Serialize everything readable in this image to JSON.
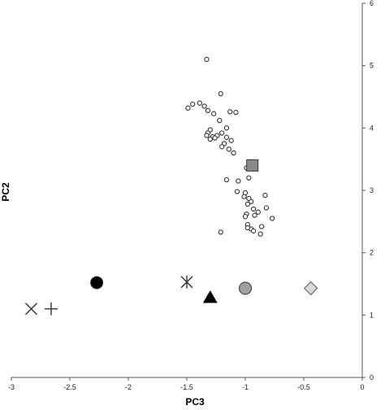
{
  "chart_data": {
    "type": "scatter",
    "title": "",
    "xlabel": "PC3",
    "ylabel": "PC2",
    "xlim": [
      -3,
      0
    ],
    "ylim": [
      0,
      6
    ],
    "x_ticks": [
      -3,
      -2.5,
      -2,
      -1.5,
      -1,
      -0.5,
      0
    ],
    "x_tick_labels": [
      "-3",
      "-2.5",
      "-2",
      "-1.5",
      "-1",
      "-0.5",
      "0"
    ],
    "y_ticks": [
      0,
      1,
      2,
      3,
      4,
      5,
      6
    ],
    "y_tick_labels": [
      "0",
      "1",
      "2",
      "3",
      "4",
      "5",
      "6"
    ],
    "grid": false,
    "y_axis_position": "right",
    "series": [
      {
        "marker": "small-open-circle",
        "color": "#ffffff",
        "edge": "#333333",
        "points": [
          [
            -1.33,
            5.1
          ],
          [
            -1.39,
            4.4
          ],
          [
            -1.45,
            4.38
          ],
          [
            -1.35,
            4.35
          ],
          [
            -1.49,
            4.32
          ],
          [
            -1.21,
            4.55
          ],
          [
            -1.13,
            4.26
          ],
          [
            -1.08,
            4.25
          ],
          [
            -1.32,
            4.28
          ],
          [
            -1.27,
            4.23
          ],
          [
            -1.22,
            4.12
          ],
          [
            -1.16,
            4.0
          ],
          [
            -1.3,
            3.97
          ],
          [
            -1.32,
            3.92
          ],
          [
            -1.28,
            3.86
          ],
          [
            -1.24,
            3.88
          ],
          [
            -1.2,
            3.92
          ],
          [
            -1.16,
            3.85
          ],
          [
            -1.12,
            3.8
          ],
          [
            -1.18,
            3.75
          ],
          [
            -1.26,
            3.84
          ],
          [
            -1.33,
            3.88
          ],
          [
            -1.3,
            3.82
          ],
          [
            -1.14,
            3.66
          ],
          [
            -1.2,
            3.7
          ],
          [
            -1.1,
            3.6
          ],
          [
            -0.97,
            3.4
          ],
          [
            -0.99,
            3.36
          ],
          [
            -1.16,
            3.17
          ],
          [
            -1.06,
            3.15
          ],
          [
            -0.97,
            3.2
          ],
          [
            -1.07,
            2.98
          ],
          [
            -1.0,
            2.96
          ],
          [
            -1.01,
            2.9
          ],
          [
            -0.97,
            2.87
          ],
          [
            -0.83,
            2.92
          ],
          [
            -0.98,
            2.78
          ],
          [
            -0.95,
            2.82
          ],
          [
            -0.93,
            2.7
          ],
          [
            -0.99,
            2.62
          ],
          [
            -1.0,
            2.58
          ],
          [
            -0.92,
            2.6
          ],
          [
            -0.89,
            2.65
          ],
          [
            -0.82,
            2.72
          ],
          [
            -0.77,
            2.55
          ],
          [
            -0.98,
            2.45
          ],
          [
            -0.95,
            2.38
          ],
          [
            -0.93,
            2.35
          ],
          [
            -0.86,
            2.42
          ],
          [
            -0.87,
            2.3
          ],
          [
            -0.98,
            2.4
          ],
          [
            -1.21,
            2.33
          ]
        ]
      },
      {
        "marker": "square",
        "color": "#8a8a8a",
        "points": [
          [
            -0.94,
            3.4
          ]
        ]
      },
      {
        "marker": "circle",
        "color": "#000000",
        "points": [
          [
            -2.27,
            1.52
          ]
        ]
      },
      {
        "marker": "asterisk",
        "color": "#333333",
        "points": [
          [
            -1.5,
            1.53
          ]
        ]
      },
      {
        "marker": "circle",
        "color": "#a0a0a0",
        "points": [
          [
            -1.0,
            1.43
          ]
        ]
      },
      {
        "marker": "diamond",
        "color": "#d9d9d9",
        "points": [
          [
            -0.44,
            1.43
          ]
        ]
      },
      {
        "marker": "triangle",
        "color": "#000000",
        "points": [
          [
            -1.3,
            1.28
          ]
        ]
      },
      {
        "marker": "x-cross",
        "color": "#333333",
        "points": [
          [
            -2.83,
            1.1
          ]
        ]
      },
      {
        "marker": "plus",
        "color": "#333333",
        "points": [
          [
            -2.66,
            1.1
          ]
        ]
      }
    ]
  }
}
